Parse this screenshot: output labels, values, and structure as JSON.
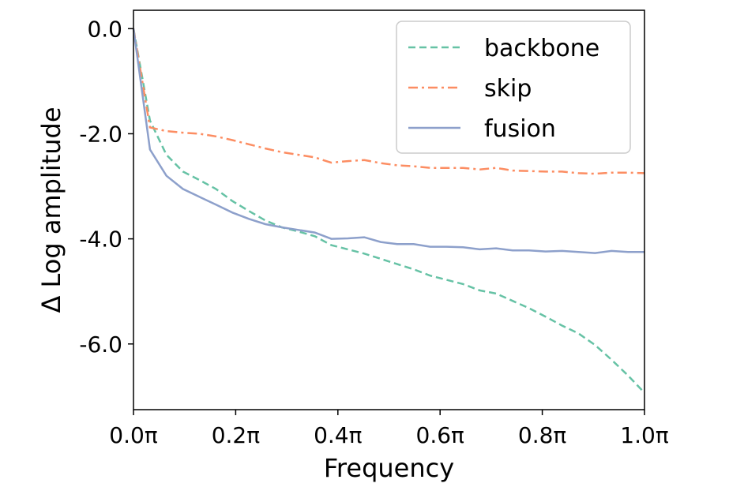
{
  "chart_data": {
    "type": "line",
    "title": "",
    "xlabel": "Frequency",
    "ylabel": "Δ Log amplitude",
    "xlim": [
      0,
      1
    ],
    "ylim": [
      -7.25,
      0.35
    ],
    "xticks": [
      0,
      0.2,
      0.4,
      0.6,
      0.8,
      1.0
    ],
    "xtick_labels": [
      "0.0π",
      "0.2π",
      "0.4π",
      "0.6π",
      "0.8π",
      "1.0π"
    ],
    "yticks": [
      0,
      -2,
      -4,
      -6
    ],
    "ytick_labels": [
      "0.0",
      "-2.0",
      "-4.0",
      "-6.0"
    ],
    "grid": false,
    "legend_position": "top-right",
    "x": [
      0,
      0.0323,
      0.0645,
      0.0968,
      0.129,
      0.1613,
      0.1935,
      0.2258,
      0.2581,
      0.2903,
      0.3226,
      0.3548,
      0.3871,
      0.4194,
      0.4516,
      0.4839,
      0.5161,
      0.5484,
      0.5806,
      0.6129,
      0.6452,
      0.6774,
      0.7097,
      0.7419,
      0.7742,
      0.8065,
      0.8387,
      0.871,
      0.9032,
      0.9355,
      0.9677,
      1.0
    ],
    "series": [
      {
        "name": "backbone",
        "color": "#66c2a5",
        "style": "dashed",
        "values": [
          0,
          -1.75,
          -2.4,
          -2.72,
          -2.88,
          -3.05,
          -3.28,
          -3.47,
          -3.65,
          -3.78,
          -3.86,
          -3.95,
          -4.12,
          -4.2,
          -4.28,
          -4.38,
          -4.48,
          -4.58,
          -4.7,
          -4.78,
          -4.86,
          -4.98,
          -5.04,
          -5.18,
          -5.32,
          -5.48,
          -5.65,
          -5.8,
          -6.02,
          -6.3,
          -6.6,
          -6.93
        ]
      },
      {
        "name": "skip",
        "color": "#fc8d62",
        "style": "dashdot",
        "values": [
          0,
          -1.88,
          -1.95,
          -1.98,
          -2.0,
          -2.05,
          -2.12,
          -2.2,
          -2.28,
          -2.35,
          -2.4,
          -2.45,
          -2.55,
          -2.52,
          -2.5,
          -2.56,
          -2.6,
          -2.62,
          -2.65,
          -2.65,
          -2.65,
          -2.68,
          -2.65,
          -2.7,
          -2.71,
          -2.72,
          -2.72,
          -2.75,
          -2.76,
          -2.74,
          -2.74,
          -2.75
        ]
      },
      {
        "name": "fusion",
        "color": "#8da0cb",
        "style": "solid",
        "values": [
          0,
          -2.3,
          -2.8,
          -3.05,
          -3.2,
          -3.35,
          -3.5,
          -3.62,
          -3.72,
          -3.78,
          -3.83,
          -3.88,
          -4.0,
          -3.99,
          -3.97,
          -4.06,
          -4.1,
          -4.1,
          -4.15,
          -4.15,
          -4.16,
          -4.2,
          -4.18,
          -4.22,
          -4.22,
          -4.24,
          -4.23,
          -4.25,
          -4.27,
          -4.23,
          -4.25,
          -4.25
        ]
      }
    ]
  }
}
